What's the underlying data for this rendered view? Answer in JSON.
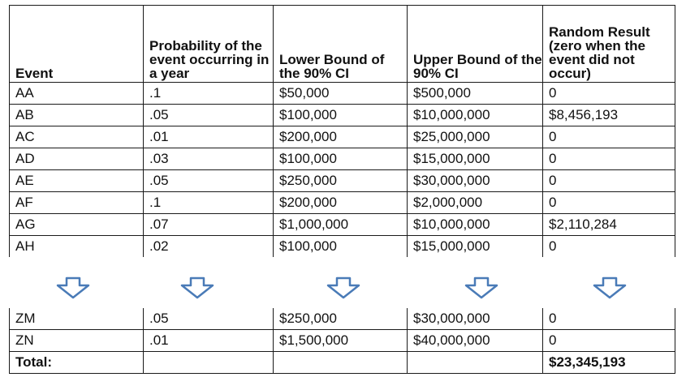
{
  "table": {
    "headers": [
      "Event",
      "Probability of the event occurring in a year",
      "Lower Bound of the 90% CI",
      "Upper Bound of the 90% CI",
      "Random Result (zero when the event did not occur)"
    ],
    "top_rows": [
      [
        "AA",
        ".1",
        "$50,000",
        "$500,000",
        "0"
      ],
      [
        "AB",
        ".05",
        "$100,000",
        "$10,000,000",
        "$8,456,193"
      ],
      [
        "AC",
        ".01",
        "$200,000",
        "$25,000,000",
        "0"
      ],
      [
        "AD",
        ".03",
        "$100,000",
        "$15,000,000",
        "0"
      ],
      [
        "AE",
        ".05",
        "$250,000",
        "$30,000,000",
        "0"
      ],
      [
        "AF",
        ".1",
        "$200,000",
        "$2,000,000",
        "0"
      ],
      [
        "AG",
        ".07",
        "$1,000,000",
        "$10,000,000",
        "$2,110,284"
      ],
      [
        "AH",
        ".02",
        "$100,000",
        "$15,000,000",
        "0"
      ]
    ],
    "bottom_rows": [
      [
        "ZM",
        ".05",
        "$250,000",
        "$30,000,000",
        "0"
      ],
      [
        "ZN",
        ".01",
        "$1,500,000",
        "$40,000,000",
        "0"
      ]
    ],
    "total": [
      "Total:",
      "",
      "",
      "",
      "$23,345,193"
    ]
  },
  "arrow_color": "#4a7bb7",
  "arrow_icon": "down-arrow-icon"
}
